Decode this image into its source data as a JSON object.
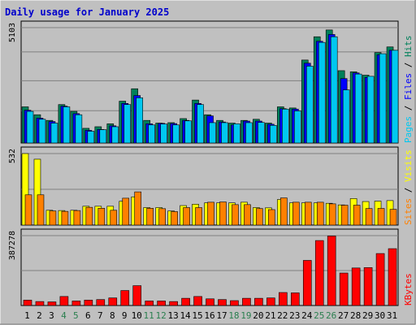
{
  "chart_data": {
    "type": "bar",
    "title": "Daily usage for January 2025",
    "categories": [
      "1",
      "2",
      "3",
      "4",
      "5",
      "6",
      "7",
      "8",
      "9",
      "10",
      "11",
      "12",
      "13",
      "14",
      "15",
      "16",
      "17",
      "18",
      "19",
      "20",
      "21",
      "22",
      "23",
      "24",
      "25",
      "26",
      "27",
      "28",
      "29",
      "30",
      "31"
    ],
    "weekend_days": [
      4,
      5,
      11,
      12,
      18,
      19,
      25,
      26
    ],
    "colors": {
      "background": "#c0c0c0",
      "title": "#0000cc",
      "weekend_label": "#2a7f4f",
      "weekday_label": "#000000",
      "hits": "#00805a",
      "files": "#0000ff",
      "pages": "#00c8f0",
      "visits": "#ffff00",
      "sites": "#ff8000",
      "kbytes": "#ff0000",
      "separator": "#000000"
    },
    "panels": [
      {
        "id": "hits-files-pages",
        "ymax_label": "5103",
        "ylim": [
          0,
          5103
        ],
        "legend": [
          {
            "text": "Pages",
            "color": "#00c8f0"
          },
          {
            "text": " / ",
            "color": "#000000"
          },
          {
            "text": "Files",
            "color": "#0000ff"
          },
          {
            "text": " / ",
            "color": "#000000"
          },
          {
            "text": "Hits",
            "color": "#00805a"
          }
        ],
        "series": [
          {
            "name": "Hits",
            "color": "#00805a",
            "values": [
              1600,
              1250,
              1000,
              1700,
              1400,
              650,
              720,
              850,
              1850,
              2400,
              1000,
              880,
              900,
              1080,
              1900,
              1250,
              1000,
              880,
              1000,
              1050,
              880,
              1600,
              1550,
              3670,
              4700,
              5000,
              3200,
              3150,
              3000,
              4000,
              4250
            ]
          },
          {
            "name": "Files",
            "color": "#0000ff",
            "values": [
              1450,
              1100,
              950,
              1630,
              1300,
              560,
              600,
              760,
              1750,
              2100,
              850,
              870,
              860,
              1000,
              1750,
              1200,
              930,
              800,
              970,
              970,
              830,
              1520,
              1500,
              3530,
              4500,
              4800,
              2850,
              3100,
              2900,
              3900,
              4100
            ]
          },
          {
            "name": "Pages",
            "color": "#00c8f0",
            "values": [
              1400,
              1050,
              880,
              1600,
              1250,
              520,
              590,
              720,
              1700,
              2000,
              800,
              840,
              800,
              980,
              1700,
              900,
              900,
              850,
              900,
              910,
              780,
              1500,
              1420,
              3400,
              4450,
              4700,
              2350,
              3050,
              2950,
              3950,
              4100
            ]
          }
        ]
      },
      {
        "id": "visits-sites",
        "ymax_label": "532",
        "ylim": [
          0,
          532
        ],
        "legend": [
          {
            "text": "Sites",
            "color": "#ff8000"
          },
          {
            "text": " / ",
            "color": "#000000"
          },
          {
            "text": "Visits",
            "color": "#ffff00"
          }
        ],
        "series": [
          {
            "name": "Visits",
            "color": "#ffff00",
            "values": [
              532,
              490,
              110,
              108,
              110,
              140,
              140,
              140,
              177,
              210,
              130,
              130,
              105,
              145,
              155,
              165,
              165,
              165,
              170,
              130,
              128,
              190,
              165,
              165,
              165,
              162,
              150,
              197,
              175,
              178,
              182
            ]
          },
          {
            "name": "Sites",
            "color": "#ff8000",
            "values": [
              225,
              225,
              105,
              102,
              108,
              132,
              125,
              110,
              200,
              247,
              125,
              122,
              100,
              130,
              130,
              170,
              172,
              152,
              152,
              123,
              115,
              202,
              170,
              170,
              170,
              158,
              148,
              148,
              123,
              124,
              117
            ]
          }
        ]
      },
      {
        "id": "kbytes",
        "ymax_label": "387278",
        "ylim": [
          0,
          387278
        ],
        "legend": [
          {
            "text": "KBytes",
            "color": "#ff0000"
          }
        ],
        "series": [
          {
            "name": "KBytes",
            "color": "#ff0000",
            "values": [
              30000,
              22000,
              20000,
              50000,
              25000,
              30000,
              33000,
              42000,
              83000,
              110000,
              25000,
              25000,
              22000,
              40000,
              50000,
              37000,
              33000,
              27000,
              40000,
              40000,
              42000,
              72000,
              70000,
              250000,
              360000,
              385000,
              180000,
              208000,
              210000,
              288000,
              315000
            ]
          }
        ]
      }
    ]
  }
}
